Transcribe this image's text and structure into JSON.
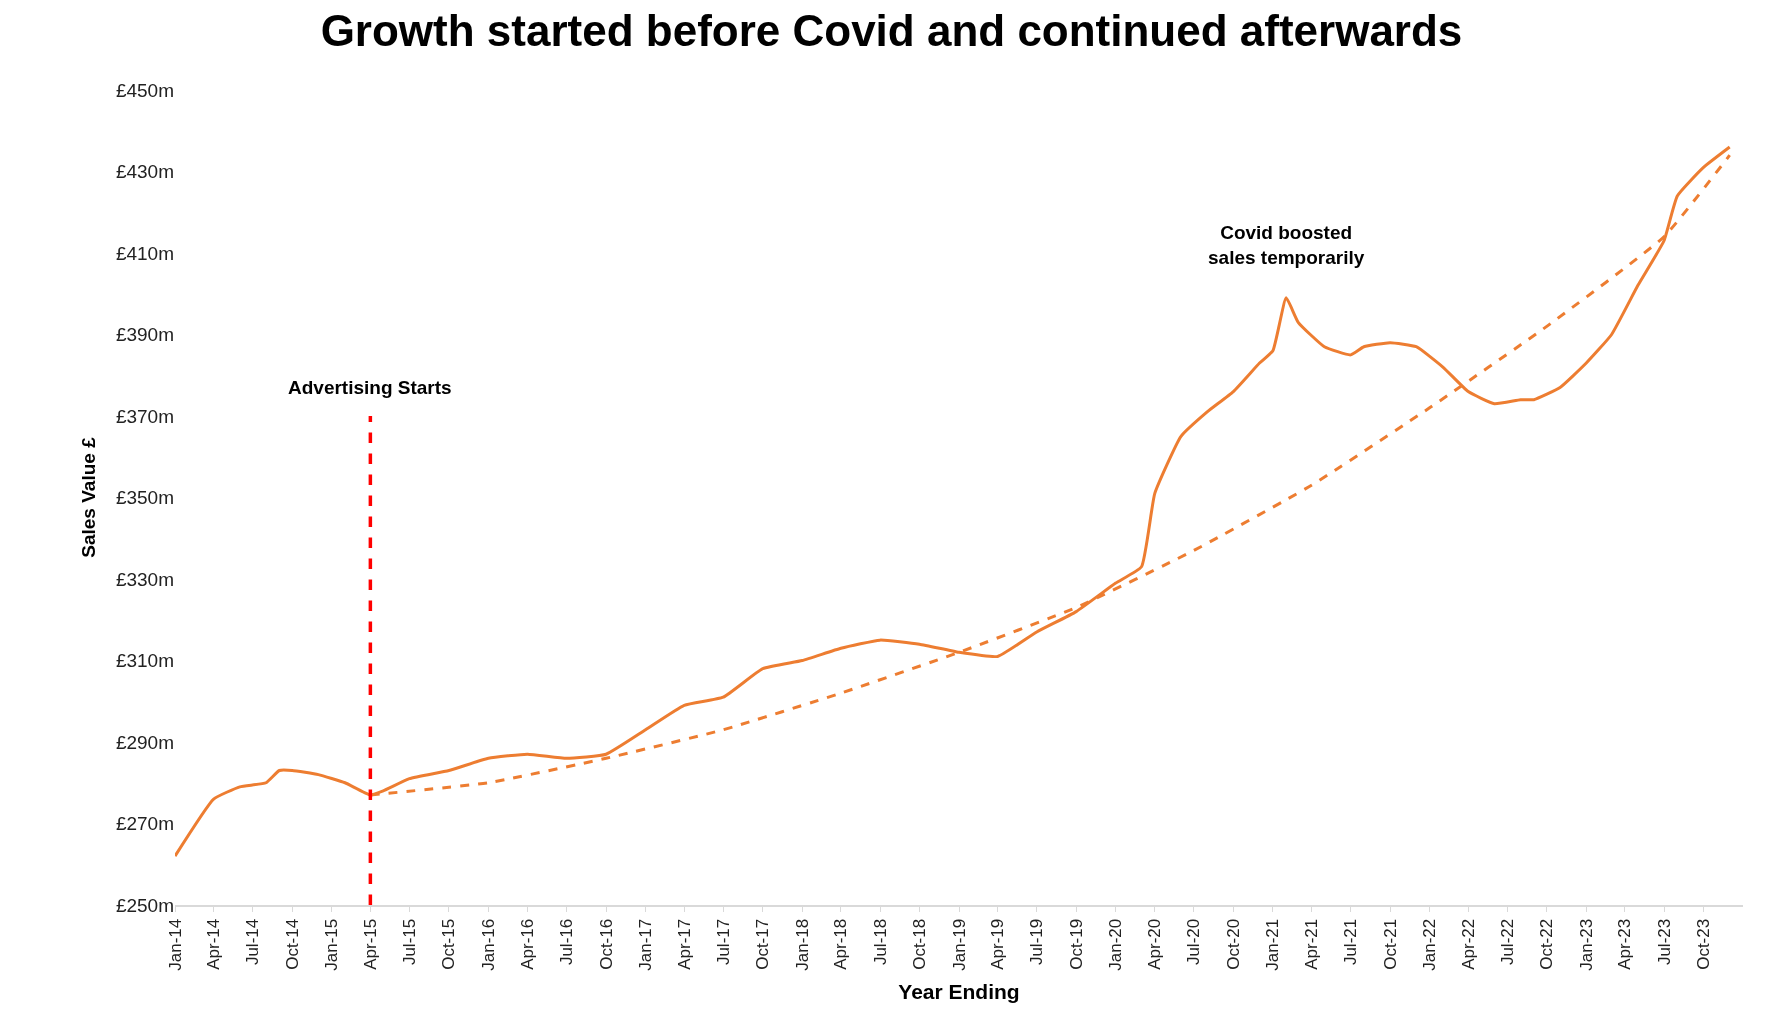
{
  "chart_data": {
    "type": "line",
    "title": "Growth started before Covid and continued afterwards",
    "xlabel": "Year Ending",
    "ylabel": "Sales Value £",
    "series": [
      {
        "color": "#ed7d31",
        "line_style": "solid",
        "x": [
          "2014-01",
          "2014-04",
          "2014-06",
          "2014-08",
          "2014-09",
          "2014-10",
          "2014-12",
          "2015-02",
          "2015-04",
          "2015-05",
          "2015-07",
          "2015-10",
          "2016-01",
          "2016-04",
          "2016-07",
          "2016-10",
          "2017-01",
          "2017-04",
          "2017-07",
          "2017-10",
          "2018-01",
          "2018-04",
          "2018-07",
          "2018-10",
          "2019-01",
          "2019-04",
          "2019-07",
          "2019-10",
          "2020-01",
          "2020-03",
          "2020-04",
          "2020-06",
          "2020-08",
          "2020-10",
          "2020-12",
          "2021-01",
          "2021-02",
          "2021-03",
          "2021-05",
          "2021-07",
          "2021-08",
          "2021-10",
          "2021-12",
          "2022-02",
          "2022-04",
          "2022-06",
          "2022-08",
          "2022-09",
          "2022-11",
          "2023-01",
          "2023-03",
          "2023-05",
          "2023-07",
          "2023-08",
          "2023-10",
          "2023-12"
        ],
        "values": [
          262,
          276,
          279,
          280,
          283,
          283,
          282,
          280,
          277,
          278,
          281,
          283,
          286,
          287,
          286,
          287,
          293,
          299,
          301,
          308,
          310,
          313,
          315,
          314,
          312,
          311,
          317,
          322,
          329,
          333,
          351,
          365,
          371,
          376,
          383,
          386,
          399,
          393,
          387,
          385,
          387,
          388,
          387,
          382,
          376,
          373,
          374,
          374,
          377,
          383,
          390,
          402,
          413,
          424,
          431,
          436
        ]
      },
      {
        "color": "#ed7d31",
        "line_style": "dashed",
        "x": [
          "2015-04",
          "2016-01",
          "2016-10",
          "2017-07",
          "2018-04",
          "2019-01",
          "2019-10",
          "2020-07",
          "2021-04",
          "2022-01",
          "2022-10",
          "2023-07",
          "2023-12"
        ],
        "values": [
          277,
          280,
          286,
          293,
          302,
          312,
          323,
          337,
          353,
          372,
          392,
          414,
          434
        ]
      }
    ],
    "xlim": [
      "2014-01-01",
      "2024-01-01"
    ],
    "ylim": [
      250,
      450
    ],
    "yticks": [
      {
        "value": 250,
        "label": "£250m"
      },
      {
        "value": 270,
        "label": "£270m"
      },
      {
        "value": 290,
        "label": "£290m"
      },
      {
        "value": 310,
        "label": "£310m"
      },
      {
        "value": 330,
        "label": "£330m"
      },
      {
        "value": 350,
        "label": "£350m"
      },
      {
        "value": 370,
        "label": "£370m"
      },
      {
        "value": 390,
        "label": "£390m"
      },
      {
        "value": 410,
        "label": "£410m"
      },
      {
        "value": 430,
        "label": "£430m"
      },
      {
        "value": 450,
        "label": "£450m"
      }
    ],
    "xticks": [
      {
        "value": "2014-01",
        "label": "Jan-14"
      },
      {
        "value": "2014-04",
        "label": "Apr-14"
      },
      {
        "value": "2014-07",
        "label": "Jul-14"
      },
      {
        "value": "2014-10",
        "label": "Oct-14"
      },
      {
        "value": "2015-01",
        "label": "Jan-15"
      },
      {
        "value": "2015-04",
        "label": "Apr-15"
      },
      {
        "value": "2015-07",
        "label": "Jul-15"
      },
      {
        "value": "2015-10",
        "label": "Oct-15"
      },
      {
        "value": "2016-01",
        "label": "Jan-16"
      },
      {
        "value": "2016-04",
        "label": "Apr-16"
      },
      {
        "value": "2016-07",
        "label": "Jul-16"
      },
      {
        "value": "2016-10",
        "label": "Oct-16"
      },
      {
        "value": "2017-01",
        "label": "Jan-17"
      },
      {
        "value": "2017-04",
        "label": "Apr-17"
      },
      {
        "value": "2017-07",
        "label": "Jul-17"
      },
      {
        "value": "2017-10",
        "label": "Oct-17"
      },
      {
        "value": "2018-01",
        "label": "Jan-18"
      },
      {
        "value": "2018-04",
        "label": "Apr-18"
      },
      {
        "value": "2018-07",
        "label": "Jul-18"
      },
      {
        "value": "2018-10",
        "label": "Oct-18"
      },
      {
        "value": "2019-01",
        "label": "Jan-19"
      },
      {
        "value": "2019-04",
        "label": "Apr-19"
      },
      {
        "value": "2019-07",
        "label": "Jul-19"
      },
      {
        "value": "2019-10",
        "label": "Oct-19"
      },
      {
        "value": "2020-01",
        "label": "Jan-20"
      },
      {
        "value": "2020-04",
        "label": "Apr-20"
      },
      {
        "value": "2020-07",
        "label": "Jul-20"
      },
      {
        "value": "2020-10",
        "label": "Oct-20"
      },
      {
        "value": "2021-01",
        "label": "Jan-21"
      },
      {
        "value": "2021-04",
        "label": "Apr-21"
      },
      {
        "value": "2021-07",
        "label": "Jul-21"
      },
      {
        "value": "2021-10",
        "label": "Oct-21"
      },
      {
        "value": "2022-01",
        "label": "Jan-22"
      },
      {
        "value": "2022-04",
        "label": "Apr-22"
      },
      {
        "value": "2022-07",
        "label": "Jul-22"
      },
      {
        "value": "2022-10",
        "label": "Oct-22"
      },
      {
        "value": "2023-01",
        "label": "Jan-23"
      },
      {
        "value": "2023-04",
        "label": "Apr-23"
      },
      {
        "value": "2023-07",
        "label": "Jul-23"
      },
      {
        "value": "2023-10",
        "label": "Oct-23"
      }
    ],
    "ref_lines": [
      {
        "axis": "x",
        "value": "2015-04",
        "label": "Advertising Starts",
        "color": "#ff0000",
        "line_style": "dashed"
      }
    ],
    "annotations": [
      {
        "text": "Covid boosted\nsales temporarily",
        "x": "2021-02",
        "y": 399
      }
    ]
  }
}
